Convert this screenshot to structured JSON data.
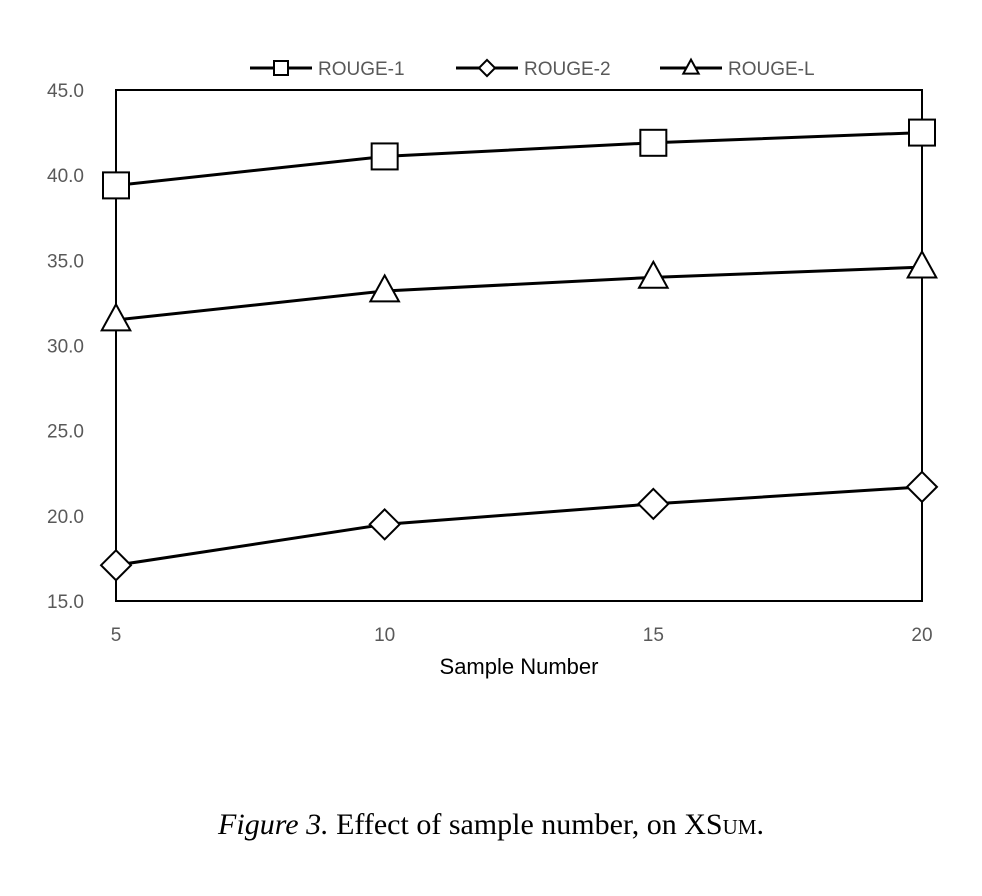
{
  "chart_data": {
    "type": "line",
    "x": [
      5,
      10,
      15,
      20
    ],
    "xlabel": "Sample Number",
    "ylabel": "",
    "ylim": [
      15.0,
      45.0
    ],
    "xlim": [
      5,
      20
    ],
    "yticks": [
      "15.0",
      "20.0",
      "25.0",
      "30.0",
      "35.0",
      "40.0",
      "45.0"
    ],
    "xticks": [
      "5",
      "10",
      "15",
      "20"
    ],
    "legend_position": "top",
    "grid": false,
    "series": [
      {
        "name": "ROUGE-1",
        "marker": "square",
        "values": [
          39.4,
          41.1,
          41.9,
          42.5
        ]
      },
      {
        "name": "ROUGE-2",
        "marker": "diamond",
        "values": [
          17.1,
          19.5,
          20.7,
          21.7
        ]
      },
      {
        "name": "ROUGE-L",
        "marker": "triangle",
        "values": [
          31.5,
          33.2,
          34.0,
          34.6
        ]
      }
    ],
    "line_color": "#000000",
    "marker_fill": "#ffffff"
  },
  "caption": {
    "label": "Figure 3.",
    "text_before": " Effect of sample number, on X",
    "dataset_first": "S",
    "dataset_rest": "um",
    "text_after": "."
  }
}
